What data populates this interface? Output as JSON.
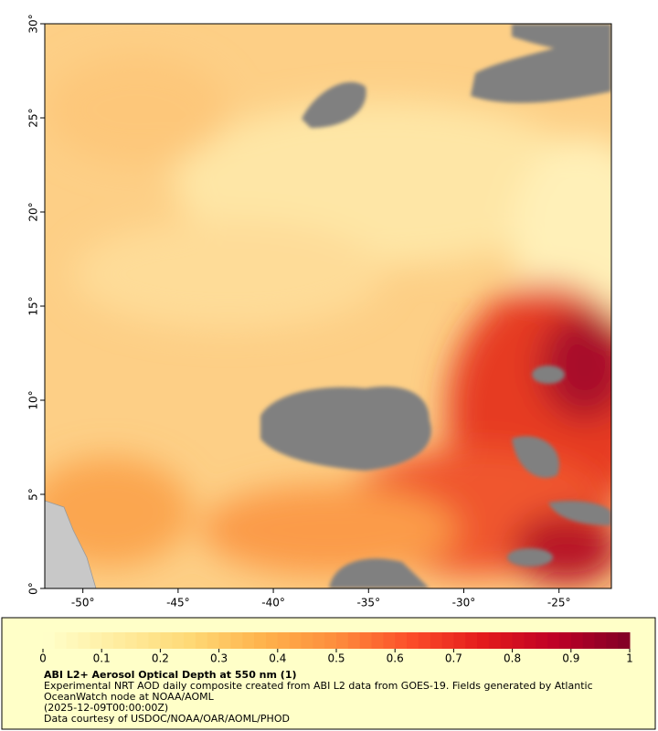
{
  "map": {
    "title": "ABI L2+ Aerosol Optical Depth at 550 nm (1)",
    "description": "Experimental NRT AOD daily composite created from ABI L2 data from GOES-19. Fields generated by Atlantic OceanWatch node at NOAA/AOML",
    "time": "(2025-12-09T00:00:00Z)",
    "credit": "Data courtesy of USDOC/NOAA/OAR/AOML/PHOD",
    "xlim": [
      -52,
      -22.25
    ],
    "ylim": [
      0,
      30
    ],
    "xticks": [
      {
        "value": -50,
        "label": "-50°"
      },
      {
        "value": -45,
        "label": "-45°"
      },
      {
        "value": -40,
        "label": "-40°"
      },
      {
        "value": -35,
        "label": "-35°"
      },
      {
        "value": -30,
        "label": "-30°"
      },
      {
        "value": -25,
        "label": "-25°"
      }
    ],
    "yticks": [
      {
        "value": 0,
        "label": "0°"
      },
      {
        "value": 5,
        "label": "5°"
      },
      {
        "value": 10,
        "label": "10°"
      },
      {
        "value": 15,
        "label": "15°"
      },
      {
        "value": 20,
        "label": "20°"
      },
      {
        "value": 25,
        "label": "25°"
      },
      {
        "value": 30,
        "label": "30°"
      }
    ],
    "colorbar": {
      "lim": [
        0,
        1
      ],
      "ticks": [
        0,
        0.1,
        0.2,
        0.3,
        0.4,
        0.5,
        0.6,
        0.7,
        0.8,
        0.9,
        1
      ],
      "colors": [
        "#ffffcc",
        "#ffeda0",
        "#fed976",
        "#feb24c",
        "#fd8d3c",
        "#fc4e2a",
        "#e31a1c",
        "#bd0026",
        "#800026"
      ]
    }
  }
}
